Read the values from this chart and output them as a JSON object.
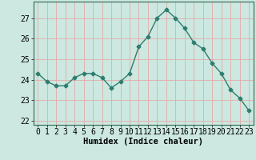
{
  "x": [
    0,
    1,
    2,
    3,
    4,
    5,
    6,
    7,
    8,
    9,
    10,
    11,
    12,
    13,
    14,
    15,
    16,
    17,
    18,
    19,
    20,
    21,
    22,
    23
  ],
  "y": [
    24.3,
    23.9,
    23.7,
    23.7,
    24.1,
    24.3,
    24.3,
    24.1,
    23.6,
    23.9,
    24.3,
    25.6,
    26.1,
    27.0,
    27.4,
    27.0,
    26.5,
    25.8,
    25.5,
    24.8,
    24.3,
    23.5,
    23.1,
    22.5
  ],
  "line_color": "#2e7d6e",
  "marker": "D",
  "marker_size": 2.5,
  "bg_color": "#cce8e0",
  "grid_color": "#e8a0a0",
  "xlabel": "Humidex (Indice chaleur)",
  "ylim": [
    21.8,
    27.8
  ],
  "xlim": [
    -0.5,
    23.5
  ],
  "yticks": [
    22,
    23,
    24,
    25,
    26,
    27
  ],
  "xticks": [
    0,
    1,
    2,
    3,
    4,
    5,
    6,
    7,
    8,
    9,
    10,
    11,
    12,
    13,
    14,
    15,
    16,
    17,
    18,
    19,
    20,
    21,
    22,
    23
  ],
  "xlabel_fontsize": 7.5,
  "tick_fontsize": 7.0,
  "linewidth": 1.0
}
